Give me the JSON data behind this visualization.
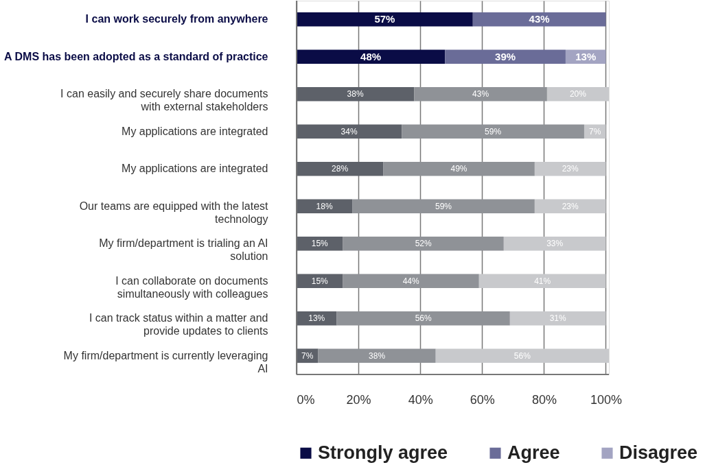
{
  "chart_data": {
    "type": "bar",
    "orientation": "horizontal",
    "stacked": true,
    "categories": [
      "I can work securely from anywhere",
      "A DMS has been adopted as a standard of practice",
      "I can easily and securely share documents with external stakeholders",
      "My applications are integrated",
      "My applications are integrated",
      "Our teams are equipped with the latest technology",
      "My firm/department is trialing an AI solution",
      "I can collaborate on documents simultaneously with colleagues",
      "I can track status within a matter and provide updates to clients",
      "My firm/department is currently leveraging AI"
    ],
    "series": [
      {
        "name": "Strongly agree",
        "color": "#0a0c46",
        "colors": [
          "#0a0c46",
          "#0a0c46",
          "#5d6169",
          "#5d6169",
          "#5d6169",
          "#5d6169",
          "#5d6169",
          "#5d6169",
          "#5d6169",
          "#5d6169"
        ],
        "values": [
          57,
          48,
          38,
          34,
          28,
          18,
          15,
          15,
          13,
          7
        ],
        "value_labels": [
          "57%",
          "48%",
          "38%",
          "34%",
          "28%",
          "18%",
          "15%",
          "15%",
          "13%",
          "7%"
        ]
      },
      {
        "name": "Agree",
        "color": "#6a6c98",
        "colors": [
          "#6a6c98",
          "#6a6c98",
          "#8f9297",
          "#8f9297",
          "#8f9297",
          "#8f9297",
          "#8f9297",
          "#8f9297",
          "#8f9297",
          "#8f9297"
        ],
        "values": [
          43,
          39,
          43,
          59,
          49,
          59,
          52,
          44,
          56,
          38
        ],
        "value_labels": [
          "43%",
          "39%",
          "43%",
          "59%",
          "49%",
          "59%",
          "52%",
          "44%",
          "56%",
          "38%"
        ]
      },
      {
        "name": "Disagree",
        "color": "#a3a4c2",
        "colors": [
          null,
          "#a3a4c2",
          "#c8c9cc",
          "#c8c9cc",
          "#c8c9cc",
          "#c8c9cc",
          "#c8c9cc",
          "#c8c9cc",
          "#c8c9cc",
          "#c8c9cc"
        ],
        "values": [
          null,
          13,
          20,
          7,
          23,
          23,
          33,
          41,
          31,
          56
        ],
        "value_labels": [
          null,
          "13%",
          "20%",
          "7%",
          "23%",
          "23%",
          "33%",
          "41%",
          "31%",
          "56%"
        ]
      }
    ],
    "xlim": [
      0,
      101
    ],
    "xticks": [
      {
        "value": 0,
        "label": "0%"
      },
      {
        "value": 20,
        "label": "20%"
      },
      {
        "value": 40,
        "label": "40%"
      },
      {
        "value": 60,
        "label": "60%"
      },
      {
        "value": 80,
        "label": "80%"
      },
      {
        "value": 100,
        "label": "100%"
      }
    ],
    "grid": "x",
    "legend": "bottom"
  }
}
